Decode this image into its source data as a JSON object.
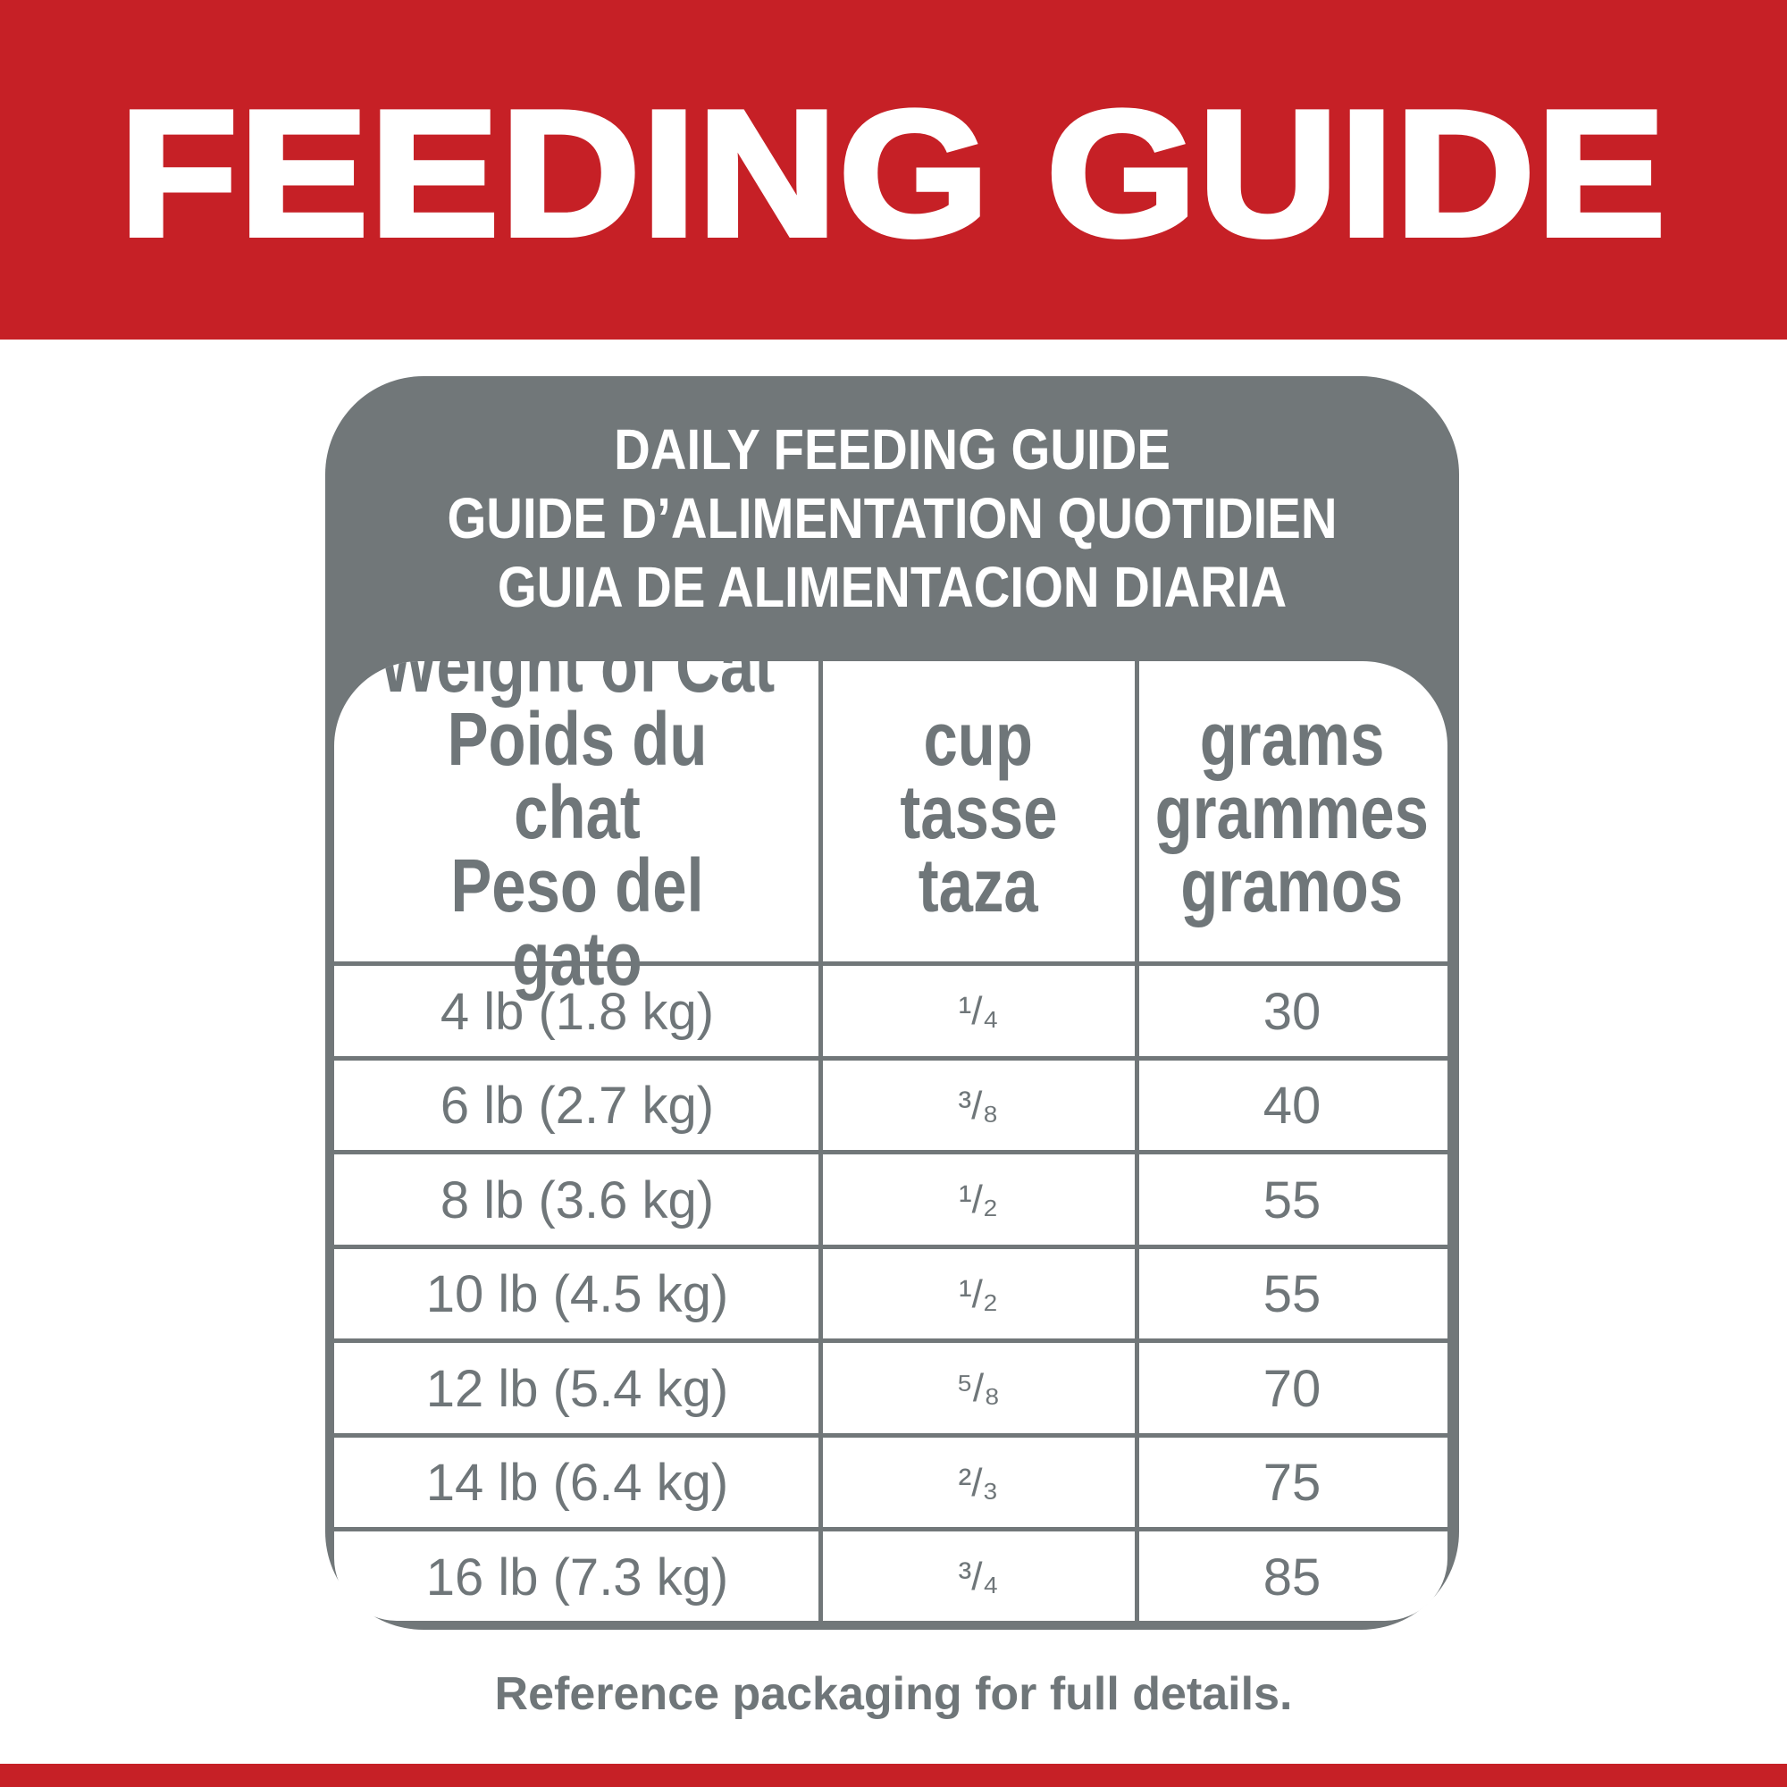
{
  "banner": {
    "title": "FEEDING GUIDE"
  },
  "colors": {
    "brand_red": "#c62026",
    "table_gray": "#717779",
    "text_gray": "#6f7679"
  },
  "card": {
    "title_lines": [
      "DAILY FEEDING GUIDE",
      "GUIDE D’ALIMENTATION QUOTIDIEN",
      "GUIA DE ALIMENTACION DIARIA"
    ]
  },
  "table": {
    "headers": [
      [
        "Weight of Cat",
        "Poids du chat",
        "Peso del gato"
      ],
      [
        "cup",
        "tasse",
        "taza"
      ],
      [
        "grams",
        "grammes",
        "gramos"
      ]
    ],
    "rows": [
      {
        "weight": "4 lb (1.8 kg)",
        "cup": "¹/₄",
        "grams": "30"
      },
      {
        "weight": "6 lb (2.7 kg)",
        "cup": "³/₈",
        "grams": "40"
      },
      {
        "weight": "8 lb (3.6 kg)",
        "cup": "¹/₂",
        "grams": "55"
      },
      {
        "weight": "10 lb (4.5 kg)",
        "cup": "¹/₂",
        "grams": "55"
      },
      {
        "weight": "12 lb (5.4 kg)",
        "cup": "⁵/₈",
        "grams": "70"
      },
      {
        "weight": "14 lb (6.4 kg)",
        "cup": "²/₃",
        "grams": "75"
      },
      {
        "weight": "16 lb (7.3 kg)",
        "cup": "³/₄",
        "grams": "85"
      }
    ]
  },
  "footer": {
    "note": "Reference packaging for full details."
  }
}
